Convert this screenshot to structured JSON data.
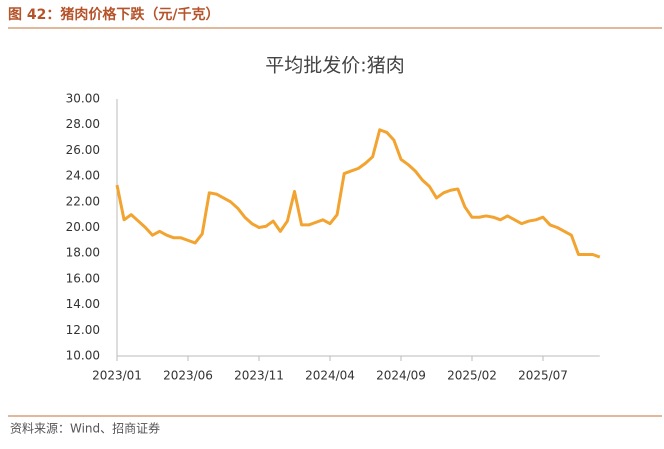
{
  "chart_data": {
    "type": "line",
    "caption": "图 42：猪肉价格下跌（元/千克）",
    "title": "平均批发价:猪肉",
    "source": "资料来源：Wind、招商证券",
    "categories": [
      "2023/01",
      null,
      null,
      null,
      null,
      null,
      null,
      null,
      null,
      null,
      "2023/06",
      null,
      null,
      null,
      null,
      null,
      null,
      null,
      null,
      null,
      "2023/11",
      null,
      null,
      null,
      null,
      null,
      null,
      null,
      null,
      null,
      "2024/04",
      null,
      null,
      null,
      null,
      null,
      null,
      null,
      null,
      null,
      "2024/09",
      null,
      null,
      null,
      null,
      null,
      null,
      null,
      null,
      null,
      "2025/02",
      null,
      null,
      null,
      null,
      null,
      null,
      null,
      null,
      null,
      "2025/07",
      null,
      null,
      null,
      null,
      null,
      null,
      null,
      null
    ],
    "series": [
      {
        "name": "平均批发价:猪肉",
        "color": "#f2a330",
        "values": [
          23.3,
          20.6,
          21.0,
          20.5,
          20.0,
          19.4,
          19.7,
          19.4,
          19.2,
          19.2,
          19.0,
          18.8,
          19.5,
          22.7,
          22.6,
          22.3,
          22.0,
          21.5,
          20.8,
          20.3,
          20.0,
          20.1,
          20.5,
          19.7,
          20.5,
          22.8,
          20.2,
          20.2,
          20.4,
          20.6,
          20.3,
          21.0,
          24.2,
          24.4,
          24.6,
          25.0,
          25.5,
          27.6,
          27.4,
          26.8,
          25.3,
          24.9,
          24.4,
          23.7,
          23.2,
          22.3,
          22.7,
          22.9,
          23.0,
          21.6,
          20.8,
          20.8,
          20.9,
          20.8,
          20.6,
          20.9,
          20.6,
          20.3,
          20.5,
          20.6,
          20.8,
          20.2,
          20.0,
          19.7,
          19.4,
          17.9,
          17.9,
          17.9,
          17.7
        ]
      }
    ],
    "ylim": [
      10,
      30
    ],
    "yticks": [
      {
        "value": 10,
        "label": "10.00"
      },
      {
        "value": 12,
        "label": "12.00"
      },
      {
        "value": 14,
        "label": "14.00"
      },
      {
        "value": 16,
        "label": "16.00"
      },
      {
        "value": 18,
        "label": "18.00"
      },
      {
        "value": 20,
        "label": "20.00"
      },
      {
        "value": 22,
        "label": "22.00"
      },
      {
        "value": 24,
        "label": "24.00"
      },
      {
        "value": 26,
        "label": "26.00"
      },
      {
        "value": 28,
        "label": "28.00"
      },
      {
        "value": 30,
        "label": "30.00"
      }
    ],
    "grid": false
  }
}
